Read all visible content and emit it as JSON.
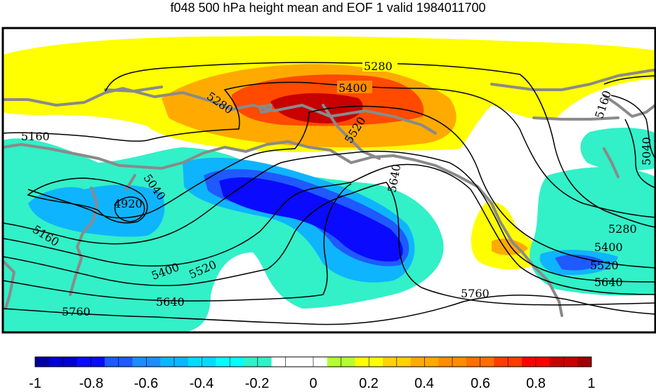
{
  "title": "f048 500 hPa height mean and EOF 1 valid 1984011700",
  "colors": {
    "frame": "#000000",
    "coastline": "#8a8a8a",
    "contour": "#000000",
    "ocean_bg": "#ffffff"
  },
  "contour_labels": [
    "5280",
    "5400",
    "5520",
    "5640",
    "5160",
    "5040",
    "4920",
    "5280",
    "5160",
    "5400",
    "5520",
    "5640",
    "5760",
    "5760",
    "5280",
    "5400",
    "5520",
    "5640",
    "5160",
    "5040"
  ],
  "colorbar": {
    "ticks": [
      "-1",
      "-0.8",
      "-0.6",
      "-0.4",
      "-0.2",
      "0",
      "0.2",
      "0.4",
      "0.6",
      "0.8",
      "1"
    ],
    "bins": [
      "#00009f",
      "#0000d2",
      "#0a0aff",
      "#1e5aff",
      "#1e8cff",
      "#0fb4ff",
      "#00dcff",
      "#00ffff",
      "#32f0c8",
      "#ffffff",
      "#ffffff",
      "#b4ff32",
      "#ffff00",
      "#ffd200",
      "#ffaa00",
      "#ff8c00",
      "#ff6e00",
      "#ff3c00",
      "#ff0000",
      "#c80000",
      "#a00000"
    ]
  }
}
